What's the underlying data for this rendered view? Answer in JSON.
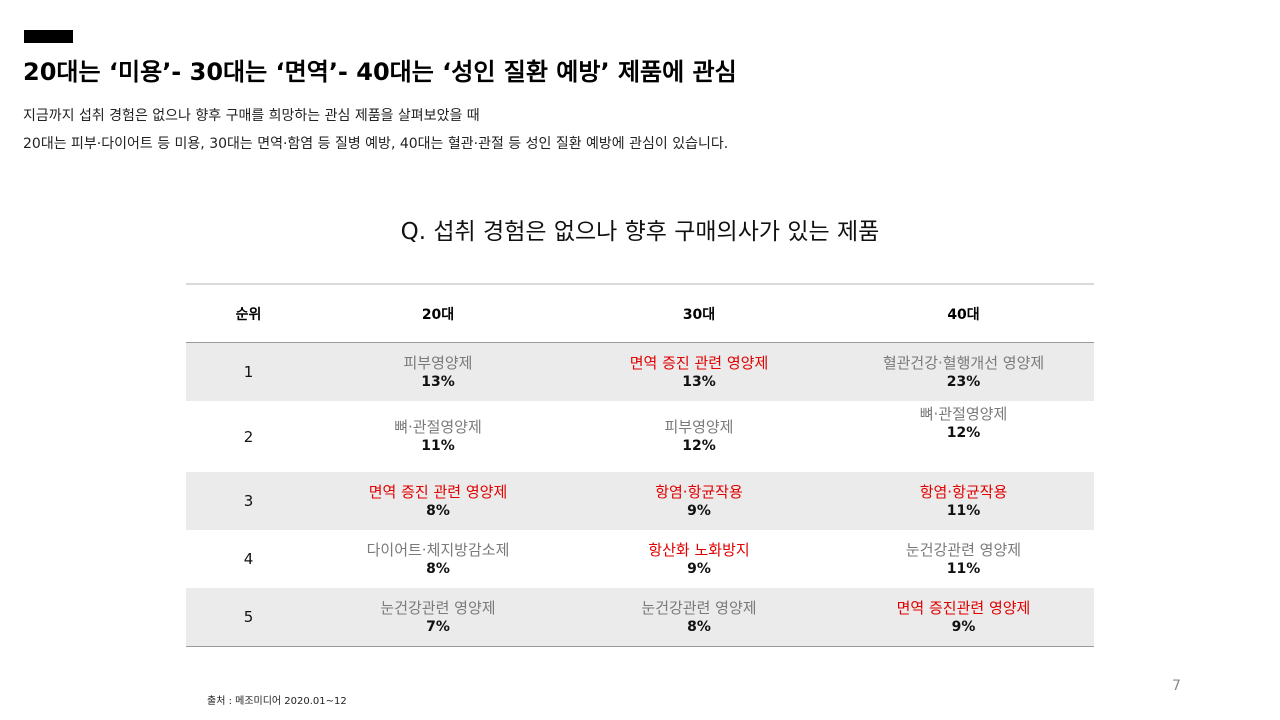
{
  "headline": "20대는 ‘미용’- 30대는 ‘면역’- 40대는 ‘성인 질환 예방’ 제품에 관심",
  "subtext": {
    "line1": "지금까지 섭취 경험은 없으나 향후 구매를 희망하는 관심 제품을 살펴보았을 때",
    "line2": "20대는 피부·다이어트 등 미용, 30대는 면역·함염 등 질병 예방, 40대는 혈관·관절 등 성인 질환 예방에 관심이 있습니다."
  },
  "question": "Q. 섭취 경험은 없으나 향후 구매의사가 있는 제품",
  "table": {
    "headers": [
      "순위",
      "20대",
      "30대",
      "40대"
    ],
    "highlight_color": "#e00000",
    "rows": [
      {
        "rank": "1",
        "cells": [
          {
            "name": "피부영양제",
            "pct": "13%",
            "highlight": false
          },
          {
            "name": "면역 증진 관련 영양제",
            "pct": "13%",
            "highlight": true
          },
          {
            "name": "혈관건강·혈행개선 영양제",
            "pct": "23%",
            "highlight": false
          }
        ]
      },
      {
        "rank": "2",
        "cells": [
          {
            "name": "뼈·관절영양제",
            "pct": "11%",
            "highlight": false
          },
          {
            "name": "피부영양제",
            "pct": "12%",
            "highlight": false
          },
          {
            "name": "뼈·관절영양제",
            "pct": "12%",
            "highlight": false
          }
        ]
      },
      {
        "rank": "3",
        "cells": [
          {
            "name": "면역 증진 관련 영양제",
            "pct": "8%",
            "highlight": true
          },
          {
            "name": "항염·항균작용",
            "pct": "9%",
            "highlight": true
          },
          {
            "name": "항염·항균작용",
            "pct": "11%",
            "highlight": true
          }
        ]
      },
      {
        "rank": "4",
        "cells": [
          {
            "name": "다이어트·체지방감소제",
            "pct": "8%",
            "highlight": false
          },
          {
            "name": "항산화 노화방지",
            "pct": "9%",
            "highlight": true
          },
          {
            "name": "눈건강관련 영양제",
            "pct": "11%",
            "highlight": false
          }
        ]
      },
      {
        "rank": "5",
        "cells": [
          {
            "name": "눈건강관련 영양제",
            "pct": "7%",
            "highlight": false
          },
          {
            "name": "눈건강관련 영양제",
            "pct": "8%",
            "highlight": false
          },
          {
            "name": "면역 증진관련 영양제",
            "pct": "9%",
            "highlight": true
          }
        ]
      }
    ]
  },
  "source": "출처 : 메조미디어 2020.01~12",
  "page_number": "7"
}
